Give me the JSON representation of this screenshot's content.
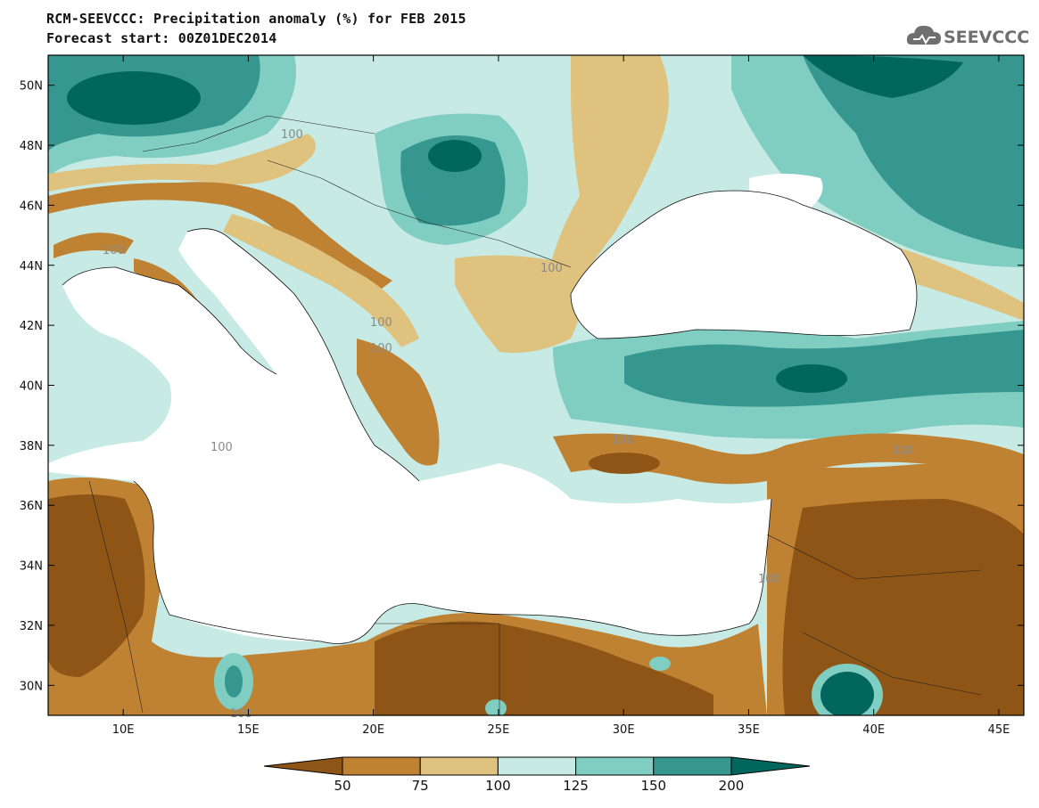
{
  "header": {
    "title_line1": "RCM-SEEVCCC: Precipitation anomaly (%) for FEB 2015",
    "title_line2": "Forecast start: 00Z01DEC2014",
    "logo_text": "SEEVCCC"
  },
  "map": {
    "region": "Eastern Mediterranean and Black Sea",
    "lon_range": [
      7,
      46
    ],
    "lat_range": [
      29,
      51
    ],
    "lat_ticks": [
      "50N",
      "48N",
      "46N",
      "44N",
      "42N",
      "40N",
      "38N",
      "36N",
      "34N",
      "32N",
      "30N"
    ],
    "lon_ticks": [
      "10E",
      "15E",
      "20E",
      "25E",
      "30E",
      "35E",
      "40E",
      "45E"
    ],
    "contour_labels": [
      "100",
      "100",
      "100",
      "100",
      "100",
      "100",
      "100",
      "100",
      "100",
      "100"
    ]
  },
  "colorbar": {
    "levels": [
      "50",
      "75",
      "100",
      "125",
      "150",
      "200"
    ],
    "colors": [
      "#8e5516",
      "#bf8232",
      "#dfc27d",
      "#c7eae5",
      "#80cdc1",
      "#35978f",
      "#01665e"
    ]
  }
}
